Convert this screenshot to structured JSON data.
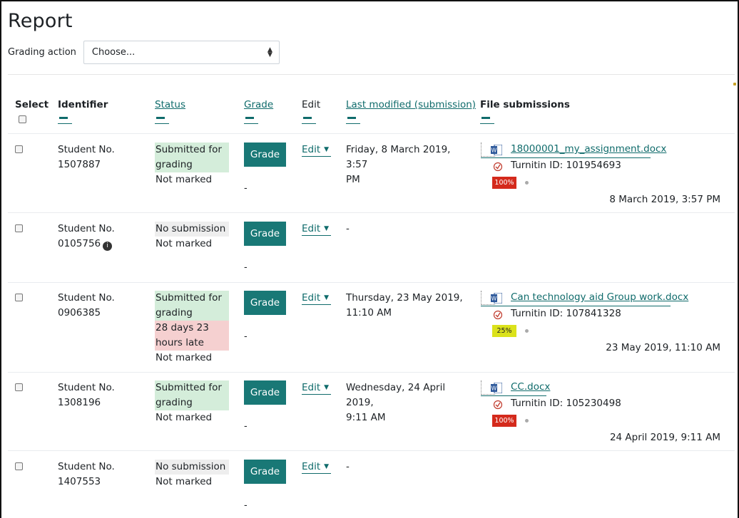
{
  "page": {
    "title": "Report"
  },
  "grading_action": {
    "label": "Grading action",
    "selected": "Choose..."
  },
  "columns": {
    "select": "Select",
    "identifier": "Identifier",
    "status": "Status",
    "grade": "Grade",
    "edit": "Edit",
    "last_modified": "Last modified (submission)",
    "file_submissions": "File submissions"
  },
  "rows": [
    {
      "identifier_line1": "Student No.",
      "identifier_line2": "1507887",
      "status": [
        "Submitted for",
        "grading"
      ],
      "status_late": [],
      "marking": "Not marked",
      "grade_button": "Grade",
      "grade_value": "-",
      "edit": "Edit",
      "modified": [
        "Friday, 8 March 2019, 3:57",
        "PM"
      ],
      "file_name": "18000001_my_assignment.docx",
      "turnitin": "Turnitin ID: 101954693",
      "similarity": "100%",
      "similarity_color": "#d42a1c",
      "submitted": "8 March 2019, 3:57 PM"
    },
    {
      "identifier_line1": "Student No.",
      "identifier_line2": "0105756",
      "status": [
        "No submission"
      ],
      "status_late": [],
      "marking": "Not marked",
      "grade_button": "Grade",
      "grade_value": "-",
      "edit": "Edit",
      "modified": [
        "-"
      ]
    },
    {
      "identifier_line1": "Student No.",
      "identifier_line2": "0906385",
      "status": [
        "Submitted for",
        "grading"
      ],
      "status_late": [
        "28 days 23",
        "hours late"
      ],
      "marking": "Not marked",
      "grade_button": "Grade",
      "grade_value": "-",
      "edit": "Edit",
      "modified": [
        "Thursday, 23 May 2019,",
        "11:10 AM"
      ],
      "file_name": "Can technology aid Group work.docx",
      "turnitin": "Turnitin ID: 107841328",
      "similarity": "25%",
      "similarity_color": "#dbe21b",
      "submitted": "23 May 2019, 11:10 AM"
    },
    {
      "identifier_line1": "Student No.",
      "identifier_line2": "1308196",
      "status": [
        "Submitted for",
        "grading"
      ],
      "status_late": [],
      "marking": "Not marked",
      "grade_button": "Grade",
      "grade_value": "-",
      "edit": "Edit",
      "modified": [
        "Wednesday, 24 April 2019,",
        "9:11 AM"
      ],
      "file_name": "CC.docx",
      "turnitin": "Turnitin ID: 105230498",
      "similarity": "100%",
      "similarity_color": "#d42a1c",
      "submitted": "24 April 2019, 9:11 AM"
    },
    {
      "identifier_line1": "Student No.",
      "identifier_line2": "1407553",
      "status": [
        "No submission"
      ],
      "status_late": [],
      "marking": "Not marked",
      "grade_button": "Grade",
      "grade_value": "-",
      "edit": "Edit",
      "modified": [
        "-"
      ]
    }
  ],
  "colors": {
    "accent": "#197876",
    "link": "#0f6b6b",
    "submitted_bg": "#d4edda",
    "late_bg": "#f5d0d0",
    "nosub_bg": "#eeeeee"
  },
  "icons": {
    "word": "word-doc-icon",
    "turnitin": "turnitin-icon",
    "info": "identity-info-icon"
  }
}
